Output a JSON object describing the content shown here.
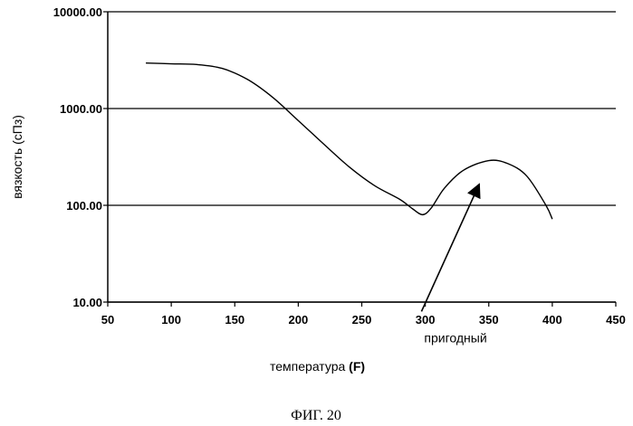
{
  "chart_data": {
    "type": "line",
    "xlabel": "температура",
    "xunit": "(F)",
    "ylabel": "вязкость (сПз)",
    "yscale": "log",
    "xlim": [
      50,
      450
    ],
    "ylim": [
      10,
      10000
    ],
    "x_ticks": [
      "50",
      "100",
      "150",
      "200",
      "250",
      "300",
      "350",
      "400",
      "450"
    ],
    "y_ticks": [
      "10.00",
      "100.00",
      "1000.00",
      "10000.00"
    ],
    "grid": "horizontal",
    "series": [
      {
        "x": [
          80,
          100,
          120,
          140,
          160,
          180,
          200,
          220,
          240,
          260,
          280,
          290,
          298,
          305,
          315,
          330,
          350,
          365,
          380,
          395,
          400
        ],
        "y": [
          2950,
          2900,
          2850,
          2600,
          2000,
          1300,
          750,
          430,
          250,
          160,
          115,
          92,
          80,
          95,
          150,
          230,
          290,
          270,
          200,
          100,
          72
        ]
      }
    ],
    "annotations": [
      {
        "text": "пригодный",
        "arrow_from": [
          297,
          8
        ],
        "arrow_to": [
          342,
          160
        ]
      }
    ]
  },
  "caption": "ФИГ. 20"
}
